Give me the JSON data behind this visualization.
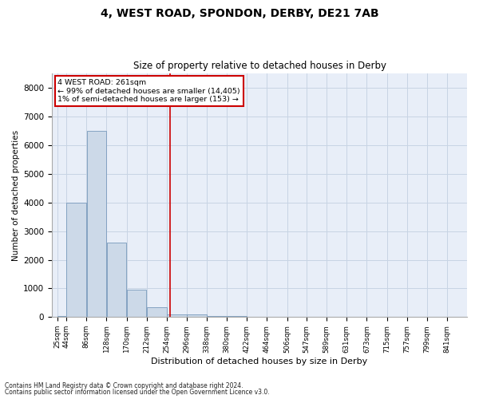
{
  "title1": "4, WEST ROAD, SPONDON, DERBY, DE21 7AB",
  "title2": "Size of property relative to detached houses in Derby",
  "xlabel": "Distribution of detached houses by size in Derby",
  "ylabel": "Number of detached properties",
  "footnote1": "Contains HM Land Registry data © Crown copyright and database right 2024.",
  "footnote2": "Contains public sector information licensed under the Open Government Licence v3.0.",
  "annotation_line1": "4 WEST ROAD: 261sqm",
  "annotation_line2": "← 99% of detached houses are smaller (14,405)",
  "annotation_line3": "1% of semi-detached houses are larger (153) →",
  "bar_color": "#ccd9e8",
  "bar_edge_color": "#7799bb",
  "grid_color": "#c8d4e4",
  "bg_color": "#e8eef8",
  "marker_color": "#cc0000",
  "annotation_box_color": "#cc0000",
  "ylim": [
    0,
    8500
  ],
  "yticks": [
    0,
    1000,
    2000,
    3000,
    4000,
    5000,
    6000,
    7000,
    8000
  ],
  "property_value": 261,
  "bin_edges": [
    25,
    44,
    86,
    128,
    170,
    212,
    254,
    296,
    338,
    380,
    422,
    464,
    506,
    547,
    589,
    631,
    673,
    715,
    757,
    799,
    841
  ],
  "bin_heights": [
    50,
    4000,
    6500,
    2600,
    950,
    350,
    100,
    100,
    50,
    30,
    10,
    5,
    3,
    2,
    1,
    1,
    1,
    0,
    0,
    0
  ],
  "tick_labels": [
    "25sqm",
    "44sqm",
    "86sqm",
    "128sqm",
    "170sqm",
    "212sqm",
    "254sqm",
    "296sqm",
    "338sqm",
    "380sqm",
    "422sqm",
    "464sqm",
    "506sqm",
    "547sqm",
    "589sqm",
    "631sqm",
    "673sqm",
    "715sqm",
    "757sqm",
    "799sqm",
    "841sqm"
  ]
}
